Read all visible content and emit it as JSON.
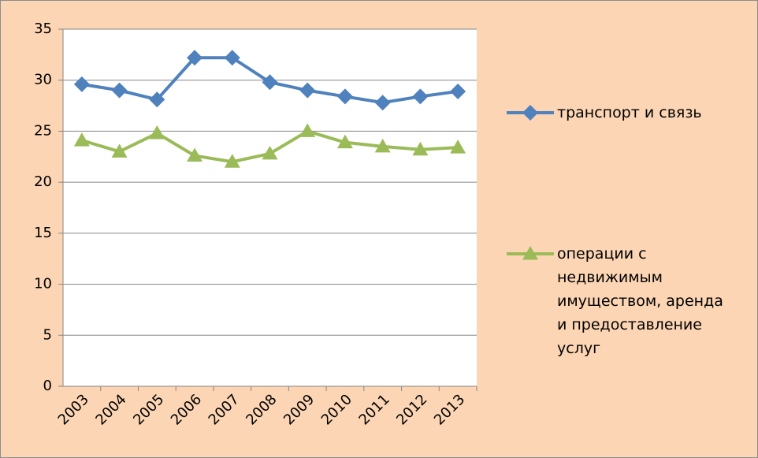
{
  "chart_data": {
    "type": "line",
    "categories": [
      "2003",
      "2004",
      "2005",
      "2006",
      "2007",
      "2008",
      "2009",
      "2010",
      "2011",
      "2012",
      "2013"
    ],
    "series": [
      {
        "name": "транспорт и связь",
        "color": "#4f81bd",
        "marker": "diamond",
        "values": [
          29.6,
          29.0,
          28.1,
          32.2,
          32.2,
          29.8,
          29.0,
          28.4,
          27.8,
          28.4,
          28.9
        ]
      },
      {
        "name": "операции с недвижимым имуществом, аренда и предоставление услуг",
        "color": "#9bbb59",
        "marker": "triangle",
        "values": [
          24.1,
          23.0,
          24.8,
          22.6,
          22.0,
          22.8,
          25.0,
          23.9,
          23.5,
          23.2,
          23.4
        ]
      }
    ],
    "ylim": [
      0,
      35
    ],
    "yticks": [
      0,
      5,
      10,
      15,
      20,
      25,
      30,
      35
    ],
    "grid": true,
    "legend": "right"
  }
}
